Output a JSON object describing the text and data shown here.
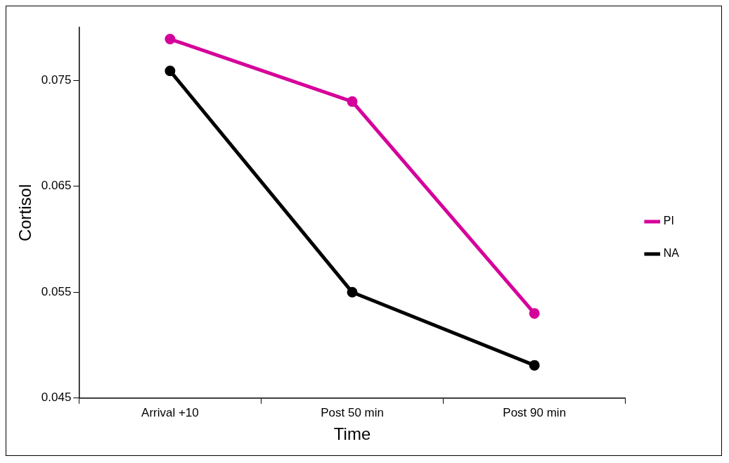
{
  "chart_data": {
    "type": "line",
    "xlabel": "Time",
    "ylabel": "Cortisol",
    "categories": [
      "Arrival +10",
      "Post 50 min",
      "Post 90 min"
    ],
    "series": [
      {
        "name": "PI",
        "color": "#d5009a",
        "values": [
          0.0789,
          0.073,
          0.053
        ]
      },
      {
        "name": "NA",
        "color": "#000000",
        "values": [
          0.0759,
          0.055,
          0.0481
        ]
      }
    ],
    "ylim": [
      0.045,
      0.08
    ],
    "yticks": [
      0.045,
      0.055,
      0.065,
      0.075
    ],
    "grid": false,
    "legend": "right",
    "marker": "circle",
    "line_style": "solid"
  }
}
